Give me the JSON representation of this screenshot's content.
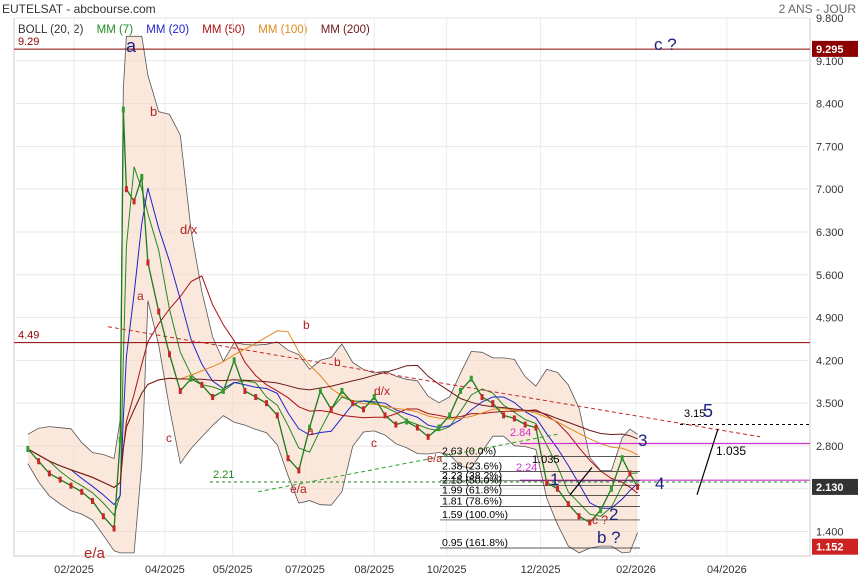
{
  "header": {
    "title": "EUTELSAT - abcbourse.com",
    "period": "2 ANS - JOUR"
  },
  "legend": [
    {
      "label": "BOLL (20, 2)",
      "color": "#333333"
    },
    {
      "label": "MM (7)",
      "color": "#228b22"
    },
    {
      "label": "MM (20)",
      "color": "#2222cc"
    },
    {
      "label": "MM (50)",
      "color": "#aa1111"
    },
    {
      "label": "MM (100)",
      "color": "#e08a1e"
    },
    {
      "label": "MM (200)",
      "color": "#6b1a1a"
    }
  ],
  "chart_data": {
    "type": "candlestick",
    "x_ticks": [
      "02/2025",
      "04/2025",
      "05/2025",
      "07/2025",
      "08/2025",
      "10/2025",
      "12/2025",
      "02/2026",
      "04/2026"
    ],
    "y_ticks": [
      "9.800",
      "9.100",
      "8.400",
      "7.700",
      "7.000",
      "6.300",
      "5.600",
      "4.900",
      "4.200",
      "3.500",
      "2.800",
      "2.100",
      "1.400"
    ],
    "ylim": [
      0.95,
      9.8
    ],
    "last_price": "2.130",
    "price_labels": [
      {
        "text": "9.295",
        "value": 9.295,
        "color": "#8b0000"
      },
      {
        "text": "2.130",
        "value": 2.13,
        "color": "#333333"
      },
      {
        "text": "1.152",
        "value": 1.152,
        "color": "#cc2222"
      }
    ],
    "close_series": [
      {
        "d": "2025-01-02",
        "v": 2.75
      },
      {
        "d": "2025-01-09",
        "v": 2.55
      },
      {
        "d": "2025-01-16",
        "v": 2.35
      },
      {
        "d": "2025-01-23",
        "v": 2.25
      },
      {
        "d": "2025-01-30",
        "v": 2.15
      },
      {
        "d": "2025-02-06",
        "v": 2.05
      },
      {
        "d": "2025-02-13",
        "v": 1.9
      },
      {
        "d": "2025-02-20",
        "v": 1.65
      },
      {
        "d": "2025-02-27",
        "v": 1.45
      },
      {
        "d": "2025-03-03",
        "v": 2.9
      },
      {
        "d": "2025-03-05",
        "v": 8.3
      },
      {
        "d": "2025-03-07",
        "v": 7.0
      },
      {
        "d": "2025-03-12",
        "v": 6.8
      },
      {
        "d": "2025-03-17",
        "v": 7.2
      },
      {
        "d": "2025-03-21",
        "v": 5.8
      },
      {
        "d": "2025-03-28",
        "v": 5.0
      },
      {
        "d": "2025-04-04",
        "v": 4.3
      },
      {
        "d": "2025-04-11",
        "v": 3.7
      },
      {
        "d": "2025-04-18",
        "v": 3.9
      },
      {
        "d": "2025-04-25",
        "v": 3.8
      },
      {
        "d": "2025-05-02",
        "v": 3.6
      },
      {
        "d": "2025-05-09",
        "v": 3.7
      },
      {
        "d": "2025-05-16",
        "v": 4.2
      },
      {
        "d": "2025-05-23",
        "v": 3.7
      },
      {
        "d": "2025-05-30",
        "v": 3.6
      },
      {
        "d": "2025-06-06",
        "v": 3.5
      },
      {
        "d": "2025-06-13",
        "v": 3.3
      },
      {
        "d": "2025-06-20",
        "v": 2.6
      },
      {
        "d": "2025-06-27",
        "v": 2.4
      },
      {
        "d": "2025-07-04",
        "v": 3.1
      },
      {
        "d": "2025-07-11",
        "v": 3.7
      },
      {
        "d": "2025-07-18",
        "v": 3.4
      },
      {
        "d": "2025-07-25",
        "v": 3.7
      },
      {
        "d": "2025-08-01",
        "v": 3.5
      },
      {
        "d": "2025-08-08",
        "v": 3.4
      },
      {
        "d": "2025-08-15",
        "v": 3.6
      },
      {
        "d": "2025-08-22",
        "v": 3.3
      },
      {
        "d": "2025-08-29",
        "v": 3.15
      },
      {
        "d": "2025-09-05",
        "v": 3.2
      },
      {
        "d": "2025-09-12",
        "v": 3.1
      },
      {
        "d": "2025-09-19",
        "v": 2.95
      },
      {
        "d": "2025-09-26",
        "v": 3.1
      },
      {
        "d": "2025-10-03",
        "v": 3.3
      },
      {
        "d": "2025-10-10",
        "v": 3.7
      },
      {
        "d": "2025-10-17",
        "v": 3.9
      },
      {
        "d": "2025-10-24",
        "v": 3.6
      },
      {
        "d": "2025-10-31",
        "v": 3.5
      },
      {
        "d": "2025-11-07",
        "v": 3.3
      },
      {
        "d": "2025-11-14",
        "v": 3.25
      },
      {
        "d": "2025-11-21",
        "v": 3.15
      },
      {
        "d": "2025-11-28",
        "v": 3.1
      },
      {
        "d": "2025-12-05",
        "v": 2.2
      },
      {
        "d": "2025-12-12",
        "v": 2.1
      },
      {
        "d": "2025-12-19",
        "v": 1.85
      },
      {
        "d": "2025-12-26",
        "v": 1.65
      },
      {
        "d": "2026-01-02",
        "v": 1.55
      },
      {
        "d": "2026-01-09",
        "v": 1.75
      },
      {
        "d": "2026-01-16",
        "v": 2.1
      },
      {
        "d": "2026-01-23",
        "v": 2.6
      },
      {
        "d": "2026-01-28",
        "v": 2.35
      },
      {
        "d": "2026-02-02",
        "v": 2.13
      }
    ],
    "horizontal_lines": [
      {
        "label": "9.29",
        "value": 9.29,
        "color": "#8b0000"
      },
      {
        "label": "4.49",
        "value": 4.49,
        "color": "#8b0000"
      },
      {
        "label": "2.21",
        "value": 2.21,
        "color": "#228b22"
      }
    ],
    "fibonacci": [
      {
        "label": "2.63  (0.0%)",
        "value": 2.63
      },
      {
        "label": "2.38  (23.6%)",
        "value": 2.38
      },
      {
        "label": "2.23  (38.2%)",
        "value": 2.23
      },
      {
        "label": "2.15  (50.0%)",
        "value": 2.15
      },
      {
        "label": "1.99  (61.8%)",
        "value": 1.99
      },
      {
        "label": "1.81  (78.6%)",
        "value": 1.81
      },
      {
        "label": "1.59  (100.0%)",
        "value": 1.59
      },
      {
        "label": "0.95  (161.8%)",
        "value": 0.95
      }
    ],
    "annotations": [
      {
        "text": "a",
        "color": "#1a237e"
      },
      {
        "text": "c ?",
        "color": "#1a237e"
      },
      {
        "text": "b",
        "color": "#b22222"
      },
      {
        "text": "d/x",
        "color": "#b22222"
      },
      {
        "text": "a",
        "color": "#b22222"
      },
      {
        "text": "c",
        "color": "#b22222"
      },
      {
        "text": "e/a",
        "color": "#b22222"
      },
      {
        "text": "b",
        "color": "#b22222"
      },
      {
        "text": "b",
        "color": "#b22222"
      },
      {
        "text": "a",
        "color": "#b22222"
      },
      {
        "text": "e/a",
        "color": "#b22222"
      },
      {
        "text": "d/x",
        "color": "#b22222"
      },
      {
        "text": "c",
        "color": "#b22222"
      },
      {
        "text": "e/a",
        "color": "#b22222"
      },
      {
        "text": "2.84",
        "color": "#cc33cc"
      },
      {
        "text": "2.24",
        "color": "#cc33cc"
      },
      {
        "text": "1.035",
        "color": "#000000"
      },
      {
        "text": "1.035",
        "color": "#000000"
      },
      {
        "text": "3.15",
        "color": "#000000"
      },
      {
        "text": "5",
        "color": "#1a237e"
      },
      {
        "text": "3",
        "color": "#1a237e"
      },
      {
        "text": "4",
        "color": "#1a237e"
      },
      {
        "text": "1",
        "color": "#1a237e"
      },
      {
        "text": "2",
        "color": "#1a237e"
      },
      {
        "text": "b ?",
        "color": "#1a237e"
      },
      {
        "text": "c ?",
        "color": "#b22222"
      }
    ]
  }
}
